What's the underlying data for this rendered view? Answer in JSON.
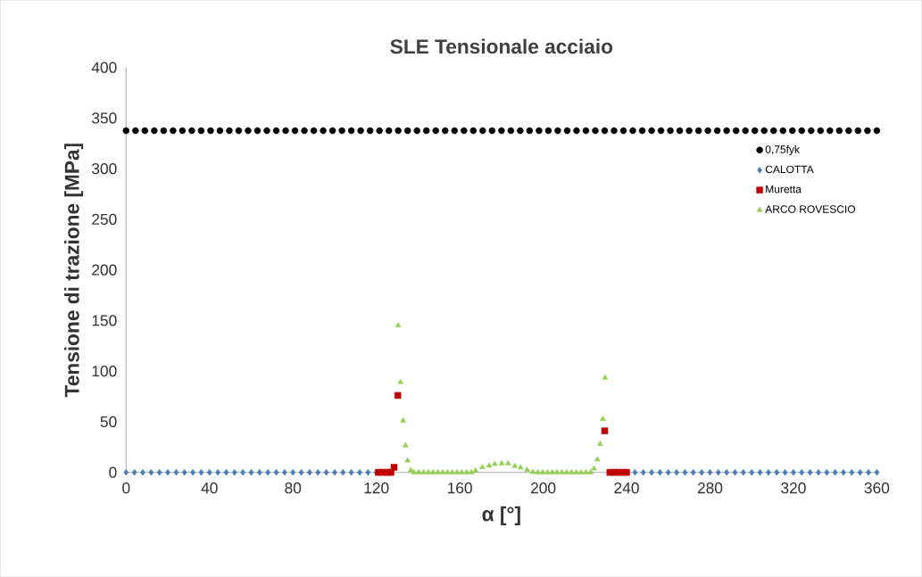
{
  "chart_data": {
    "type": "scatter",
    "title": "SLE Tensionale acciaio",
    "xlabel": "α [°]",
    "ylabel": "Tensione di trazione [MPa]",
    "xlim": [
      0,
      360
    ],
    "xticks": [
      0,
      40,
      80,
      120,
      160,
      200,
      240,
      280,
      320,
      360
    ],
    "ylim": [
      0,
      400
    ],
    "yticks": [
      0,
      50,
      100,
      150,
      200,
      250,
      300,
      350,
      400
    ],
    "grid": false,
    "legend": "right",
    "series": [
      {
        "name": "0,75fyk",
        "color": "#000000",
        "marker": "circle",
        "x": [
          0,
          4.5,
          9,
          13.5,
          18,
          22.5,
          27,
          31.5,
          36,
          40.5,
          45,
          49.5,
          54,
          58.5,
          63,
          67.5,
          72,
          76.5,
          81,
          85.5,
          90,
          94.5,
          99,
          103.5,
          108,
          112.5,
          117,
          121.5,
          126,
          130.5,
          135,
          139.5,
          144,
          148.5,
          153,
          157.5,
          162,
          166.5,
          171,
          175.5,
          180,
          184.5,
          189,
          193.5,
          198,
          202.5,
          207,
          211.5,
          216,
          220.5,
          225,
          229.5,
          234,
          238.5,
          243,
          247.5,
          252,
          256.5,
          261,
          265.5,
          270,
          274.5,
          279,
          283.5,
          288,
          292.5,
          297,
          301.5,
          306,
          310.5,
          315,
          319.5,
          324,
          328.5,
          333,
          337.5,
          342,
          346.5,
          351,
          355.5,
          360
        ],
        "values": [
          337.5,
          337.5,
          337.5,
          337.5,
          337.5,
          337.5,
          337.5,
          337.5,
          337.5,
          337.5,
          337.5,
          337.5,
          337.5,
          337.5,
          337.5,
          337.5,
          337.5,
          337.5,
          337.5,
          337.5,
          337.5,
          337.5,
          337.5,
          337.5,
          337.5,
          337.5,
          337.5,
          337.5,
          337.5,
          337.5,
          337.5,
          337.5,
          337.5,
          337.5,
          337.5,
          337.5,
          337.5,
          337.5,
          337.5,
          337.5,
          337.5,
          337.5,
          337.5,
          337.5,
          337.5,
          337.5,
          337.5,
          337.5,
          337.5,
          337.5,
          337.5,
          337.5,
          337.5,
          337.5,
          337.5,
          337.5,
          337.5,
          337.5,
          337.5,
          337.5,
          337.5,
          337.5,
          337.5,
          337.5,
          337.5,
          337.5,
          337.5,
          337.5,
          337.5,
          337.5,
          337.5,
          337.5,
          337.5,
          337.5,
          337.5,
          337.5,
          337.5,
          337.5,
          337.5,
          337.5,
          337.5
        ]
      },
      {
        "name": "CALOTTA",
        "color": "#4a7ebb",
        "marker": "diamond",
        "x": [
          0,
          4,
          8,
          12,
          16,
          20,
          24,
          28,
          32,
          36,
          40,
          44,
          48,
          52,
          56,
          60,
          64,
          68,
          72,
          76,
          80,
          84,
          88,
          92,
          96,
          100,
          104,
          108,
          112,
          116,
          120,
          240,
          244,
          248,
          252,
          256,
          260,
          264,
          268,
          272,
          276,
          280,
          284,
          288,
          292,
          296,
          300,
          304,
          308,
          312,
          316,
          320,
          324,
          328,
          332,
          336,
          340,
          344,
          348,
          352,
          356,
          360
        ],
        "values": [
          0,
          0,
          0,
          0,
          0,
          0,
          0,
          0,
          0,
          0,
          0,
          0,
          0,
          0,
          0,
          0,
          0,
          0,
          0,
          0,
          0,
          0,
          0,
          0,
          0,
          0,
          0,
          0,
          0,
          0,
          0,
          0,
          0,
          0,
          0,
          0,
          0,
          0,
          0,
          0,
          0,
          0,
          0,
          0,
          0,
          0,
          0,
          0,
          0,
          0,
          0,
          0,
          0,
          0,
          0,
          0,
          0,
          0,
          0,
          0,
          0,
          0
        ]
      },
      {
        "name": "Muretta",
        "color": "#c00000",
        "marker": "square",
        "x": [
          121,
          123,
          125,
          127,
          128.5,
          130.3,
          229.5,
          232,
          234,
          236,
          238,
          240
        ],
        "values": [
          0,
          0,
          0,
          0,
          5,
          76,
          41,
          0,
          0,
          0,
          0,
          0
        ]
      },
      {
        "name": "ARCO ROVESCIO",
        "color": "#92d050",
        "marker": "triangle",
        "x": [
          130.5,
          131.6,
          132.8,
          134,
          135,
          136.5,
          138,
          140.3,
          142.6,
          144.9,
          147.2,
          149.5,
          151.8,
          154.1,
          156.4,
          158.7,
          161,
          163.3,
          165.6,
          167.6,
          170.8,
          174.1,
          176.8,
          180.1,
          183.2,
          186.4,
          189.2,
          192.3,
          195,
          197.5,
          199.8,
          202.1,
          204.4,
          206.7,
          209,
          211.3,
          213.6,
          215.9,
          218.2,
          220.5,
          222.8,
          224.4,
          226,
          227.3,
          228.6,
          229.7
        ],
        "values": [
          145,
          89,
          51,
          26.5,
          11.7,
          2,
          0,
          0,
          0,
          0,
          0,
          0,
          0,
          0,
          0,
          0,
          0,
          0,
          0,
          1.7,
          5,
          6.5,
          8.2,
          8.8,
          8.8,
          6.2,
          4.7,
          2.6,
          0.3,
          0,
          0,
          0,
          0,
          0,
          0,
          0,
          0,
          0,
          0,
          0,
          0,
          3.8,
          12.6,
          28,
          52.6,
          93.4
        ]
      }
    ]
  }
}
